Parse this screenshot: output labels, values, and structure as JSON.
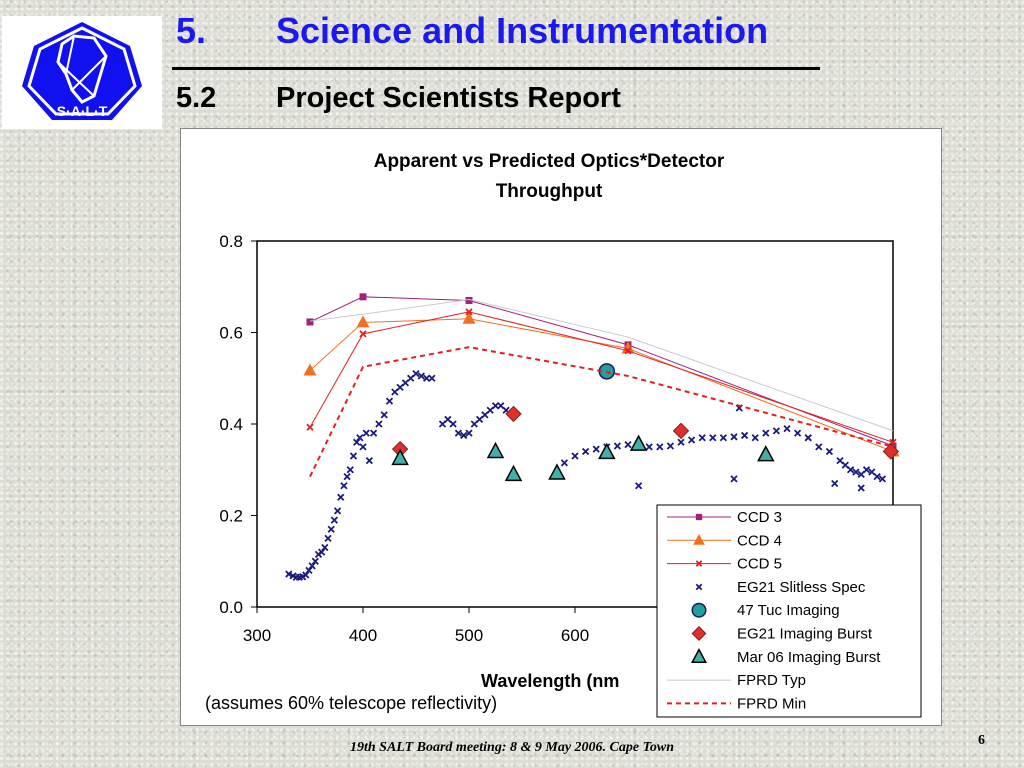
{
  "header": {
    "section_number": "5.",
    "section_title": "Science and Instrumentation",
    "subsection_number": "5.2",
    "subsection_title": "Project Scientists Report"
  },
  "logo": {
    "text": "S·A·L·T"
  },
  "footer": {
    "text": "19th SALT Board meeting: 8 & 9 May 2006. Cape Town",
    "page": "6"
  },
  "chart_data": {
    "type": "scatter",
    "title": "Apparent vs Predicted  Optics*Detector Throughput",
    "title_lines": [
      "Apparent vs Predicted  Optics*Detector",
      "Throughput"
    ],
    "xlabel": "Wavelength (nm",
    "ylabel": "",
    "annotation": "(assumes 60% telescope reflectivity)",
    "xlim": [
      300,
      900
    ],
    "ylim": [
      0,
      0.8
    ],
    "x_ticks": [
      300,
      400,
      500,
      600
    ],
    "y_ticks": [
      "0.0",
      "0.2",
      "0.4",
      "0.6",
      "0.8"
    ],
    "legend_position": "bottom-right",
    "series": [
      {
        "name": "CCD 3",
        "marker": "square",
        "color": "#a0207c",
        "line": true,
        "x": [
          350,
          400,
          500,
          650,
          900
        ],
        "y": [
          0.623,
          0.678,
          0.67,
          0.573,
          0.352
        ]
      },
      {
        "name": "CCD 4",
        "marker": "triangle",
        "color": "#f07020",
        "line": true,
        "x": [
          350,
          400,
          500,
          650,
          900
        ],
        "y": [
          0.517,
          0.622,
          0.63,
          0.565,
          0.34
        ]
      },
      {
        "name": "CCD 5",
        "marker": "x",
        "color": "#e02020",
        "line": true,
        "x": [
          350,
          400,
          500,
          650,
          900
        ],
        "y": [
          0.393,
          0.597,
          0.645,
          0.56,
          0.36
        ]
      },
      {
        "name": "EG21 Slitless Spec",
        "marker": "x",
        "color": "#1a1a80",
        "line": false,
        "x": [
          330,
          334,
          337,
          340,
          343,
          346,
          349,
          352,
          355,
          358,
          361,
          364,
          367,
          370,
          373,
          376,
          379,
          382,
          385,
          388,
          391,
          394,
          397,
          400,
          403,
          406,
          410,
          415,
          420,
          425,
          430,
          435,
          440,
          445,
          450,
          455,
          460,
          465,
          475,
          480,
          485,
          490,
          495,
          500,
          505,
          510,
          515,
          520,
          525,
          530,
          535,
          590,
          600,
          610,
          620,
          630,
          640,
          650,
          660,
          670,
          680,
          690,
          700,
          710,
          720,
          730,
          740,
          750,
          760,
          770,
          780,
          790,
          800,
          810,
          820,
          830,
          840,
          850,
          855,
          860,
          865,
          870,
          875,
          880,
          885,
          890,
          660,
          750,
          755,
          820,
          845,
          870
        ],
        "y": [
          0.072,
          0.068,
          0.065,
          0.065,
          0.066,
          0.07,
          0.08,
          0.09,
          0.1,
          0.115,
          0.12,
          0.13,
          0.15,
          0.17,
          0.19,
          0.21,
          0.24,
          0.265,
          0.285,
          0.3,
          0.33,
          0.36,
          0.37,
          0.35,
          0.38,
          0.32,
          0.38,
          0.4,
          0.42,
          0.45,
          0.47,
          0.48,
          0.49,
          0.5,
          0.51,
          0.505,
          0.5,
          0.5,
          0.4,
          0.41,
          0.4,
          0.38,
          0.375,
          0.38,
          0.4,
          0.41,
          0.42,
          0.43,
          0.44,
          0.44,
          0.43,
          0.315,
          0.33,
          0.34,
          0.345,
          0.35,
          0.352,
          0.355,
          0.355,
          0.35,
          0.35,
          0.352,
          0.36,
          0.365,
          0.37,
          0.37,
          0.37,
          0.372,
          0.375,
          0.37,
          0.38,
          0.385,
          0.39,
          0.38,
          0.37,
          0.35,
          0.34,
          0.32,
          0.31,
          0.3,
          0.295,
          0.29,
          0.3,
          0.295,
          0.285,
          0.28,
          0.265,
          0.28,
          0.435,
          0.37,
          0.27,
          0.26
        ]
      },
      {
        "name": "47 Tuc Imaging",
        "marker": "circle",
        "color": "#20a0a0",
        "line": false,
        "x": [
          630
        ],
        "y": [
          0.515
        ]
      },
      {
        "name": "EG21 Imaging Burst",
        "marker": "diamond",
        "color": "#e0302c",
        "line": false,
        "x": [
          435,
          542,
          700,
          898
        ],
        "y": [
          0.345,
          0.422,
          0.385,
          0.34
        ]
      },
      {
        "name": "Mar 06 Imaging Burst",
        "marker": "triangle-outline",
        "color": "#40b0a8",
        "line": false,
        "x": [
          435,
          525,
          542,
          583,
          630,
          660,
          780
        ],
        "y": [
          0.325,
          0.34,
          0.29,
          0.293,
          0.338,
          0.356,
          0.333
        ]
      },
      {
        "name": "FPRD Typ",
        "marker": "none",
        "color": "#c8c8d8",
        "line": true,
        "x": [
          350,
          400,
          500,
          650,
          900
        ],
        "y": [
          0.625,
          0.64,
          0.672,
          0.59,
          0.385
        ]
      },
      {
        "name": "FPRD Min",
        "marker": "none",
        "color": "#e02020",
        "line": "dashed",
        "x": [
          350,
          400,
          500,
          650,
          900
        ],
        "y": [
          0.285,
          0.525,
          0.568,
          0.505,
          0.35
        ]
      }
    ]
  }
}
